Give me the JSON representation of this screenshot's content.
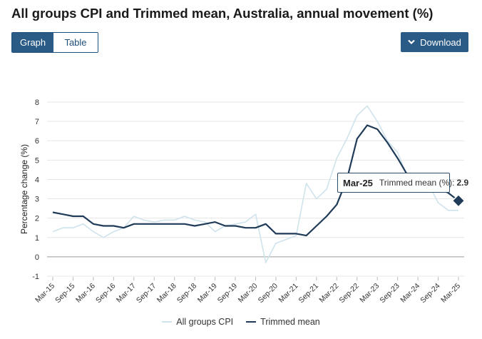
{
  "page": {
    "title": "All groups CPI and Trimmed mean, Australia, annual movement (%)"
  },
  "controls": {
    "graph_label": "Graph",
    "table_label": "Table",
    "download_label": "Download"
  },
  "colors": {
    "cpi": "#cfe3ec",
    "trimmed": "#1f3b57",
    "accent": "#2a5b87"
  },
  "tooltip": {
    "period": "Mar-25",
    "series": "Trimmed mean (%):",
    "value": "2.9"
  },
  "chart_data": {
    "type": "line",
    "title": "All groups CPI and Trimmed mean, Australia, annual movement (%)",
    "ylabel": "Percentage change (%)",
    "xlabel": "",
    "ylim": [
      -1,
      8
    ],
    "yticks": [
      -1,
      0,
      1,
      2,
      3,
      4,
      5,
      6,
      7,
      8
    ],
    "xticks": [
      "Mar-15",
      "Sep-15",
      "Mar-16",
      "Sep-16",
      "Mar-17",
      "Sep-17",
      "Mar-18",
      "Sep-18",
      "Mar-19",
      "Sep-19",
      "Mar-20",
      "Sep-20",
      "Mar-21",
      "Sep-21",
      "Mar-22",
      "Sep-22",
      "Mar-23",
      "Sep-23",
      "Mar-24",
      "Sep-24",
      "Mar-25"
    ],
    "categories": [
      "Mar-15",
      "Jun-15",
      "Sep-15",
      "Dec-15",
      "Mar-16",
      "Jun-16",
      "Sep-16",
      "Dec-16",
      "Mar-17",
      "Jun-17",
      "Sep-17",
      "Dec-17",
      "Mar-18",
      "Jun-18",
      "Sep-18",
      "Dec-18",
      "Mar-19",
      "Jun-19",
      "Sep-19",
      "Dec-19",
      "Mar-20",
      "Jun-20",
      "Sep-20",
      "Dec-20",
      "Mar-21",
      "Jun-21",
      "Sep-21",
      "Dec-21",
      "Mar-22",
      "Jun-22",
      "Sep-22",
      "Dec-22",
      "Mar-23",
      "Jun-23",
      "Sep-23",
      "Dec-23",
      "Mar-24",
      "Jun-24",
      "Sep-24",
      "Dec-24",
      "Mar-25"
    ],
    "series": [
      {
        "name": "All groups CPI",
        "values": [
          1.3,
          1.5,
          1.5,
          1.7,
          1.3,
          1.0,
          1.3,
          1.5,
          2.1,
          1.9,
          1.8,
          1.9,
          1.9,
          2.1,
          1.9,
          1.8,
          1.3,
          1.6,
          1.7,
          1.8,
          2.2,
          -0.3,
          0.7,
          0.9,
          1.1,
          3.8,
          3.0,
          3.5,
          5.1,
          6.1,
          7.3,
          7.8,
          7.0,
          6.0,
          5.4,
          4.1,
          3.6,
          3.8,
          2.8,
          2.4,
          2.4
        ]
      },
      {
        "name": "Trimmed mean",
        "values": [
          2.3,
          2.2,
          2.1,
          2.1,
          1.7,
          1.6,
          1.6,
          1.5,
          1.7,
          1.7,
          1.7,
          1.7,
          1.7,
          1.7,
          1.6,
          1.7,
          1.8,
          1.6,
          1.6,
          1.5,
          1.5,
          1.7,
          1.2,
          1.2,
          1.2,
          1.1,
          1.6,
          2.1,
          2.7,
          4.0,
          6.1,
          6.8,
          6.6,
          5.9,
          5.1,
          4.2,
          4.0,
          3.9,
          3.6,
          3.3,
          2.9
        ]
      }
    ],
    "legend": [
      "All groups CPI",
      "Trimmed mean"
    ],
    "legend_position": "bottom",
    "grid": true
  }
}
